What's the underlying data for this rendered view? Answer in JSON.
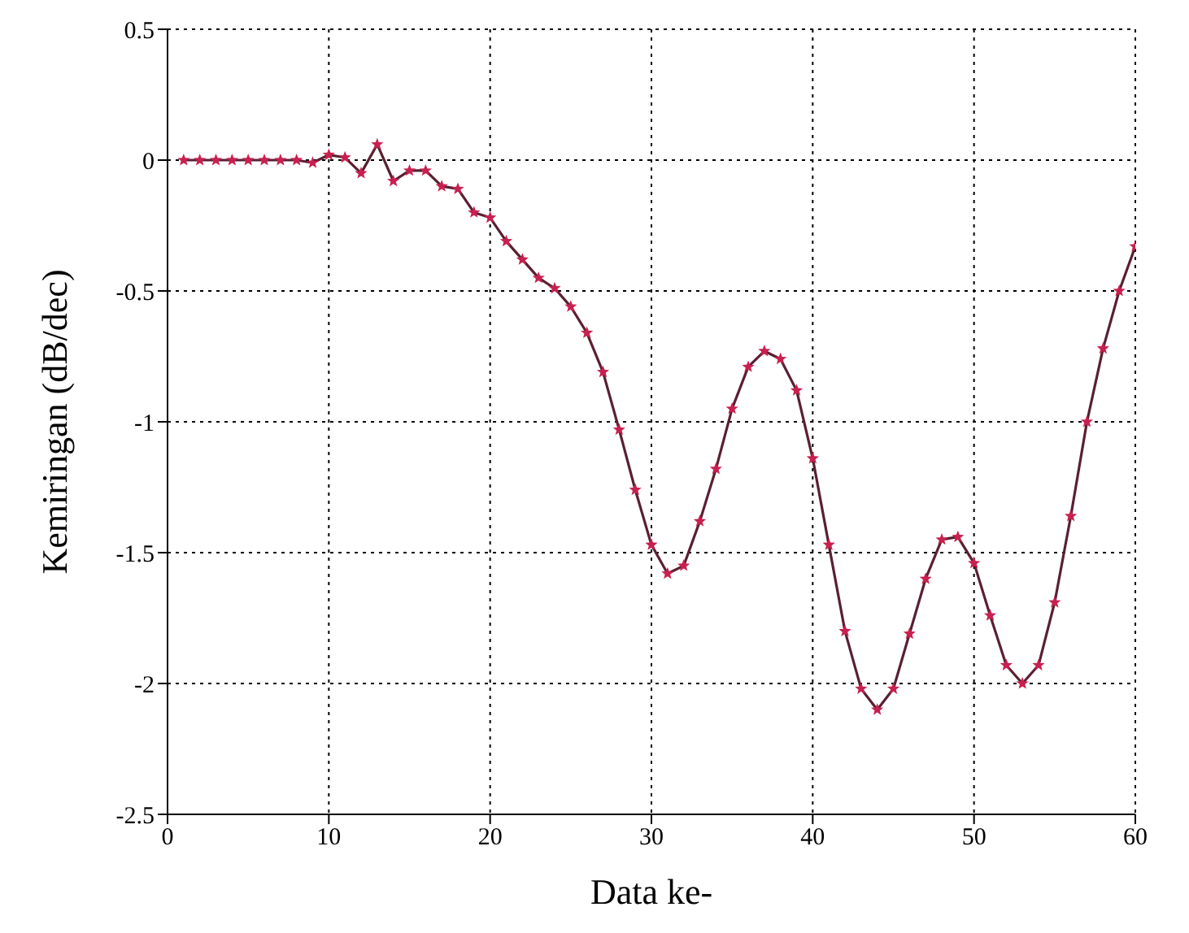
{
  "chart_data": {
    "type": "line",
    "xlabel": "Data ke-",
    "ylabel": "Kemiringan (dB/dec)",
    "x": [
      1,
      2,
      3,
      4,
      5,
      6,
      7,
      8,
      9,
      10,
      11,
      12,
      13,
      14,
      15,
      16,
      17,
      18,
      19,
      20,
      21,
      22,
      23,
      24,
      25,
      26,
      27,
      28,
      29,
      30,
      31,
      32,
      33,
      34,
      35,
      36,
      37,
      38,
      39,
      40,
      41,
      42,
      43,
      44,
      45,
      46,
      47,
      48,
      49,
      50,
      51,
      52,
      53,
      54,
      55,
      56,
      57,
      58,
      59,
      60
    ],
    "series": [
      {
        "color": "#c8204f",
        "values": [
          0,
          0,
          0,
          0,
          0,
          0,
          0,
          0,
          -0.01,
          0.02,
          0.01,
          -0.05,
          0.06,
          -0.08,
          -0.04,
          -0.04,
          -0.1,
          -0.11,
          -0.2,
          -0.22,
          -0.31,
          -0.38,
          -0.45,
          -0.49,
          -0.56,
          -0.66,
          -0.81,
          -1.03,
          -1.26,
          -1.47,
          -1.58,
          -1.55,
          -1.38,
          -1.18,
          -0.95,
          -0.79,
          -0.73,
          -0.76,
          -0.88,
          -1.14,
          -1.47,
          -1.8,
          -2.02,
          -2.1,
          -2.02,
          -1.81,
          -1.6,
          -1.45,
          -1.44,
          -1.54,
          -1.74,
          -1.93,
          -2,
          -1.93,
          -1.69,
          -1.36,
          -1,
          -0.72,
          -0.5,
          -0.33
        ]
      }
    ],
    "xlim": [
      0,
      60
    ],
    "xticks": [
      0,
      10,
      20,
      30,
      40,
      50,
      60
    ],
    "ylim": [
      -2.5,
      0.5
    ],
    "yticks": [
      -2.5,
      -2,
      -1.5,
      -1,
      -0.5,
      0,
      0.5
    ],
    "grid": true,
    "marker": "star",
    "line_style": "solid"
  }
}
